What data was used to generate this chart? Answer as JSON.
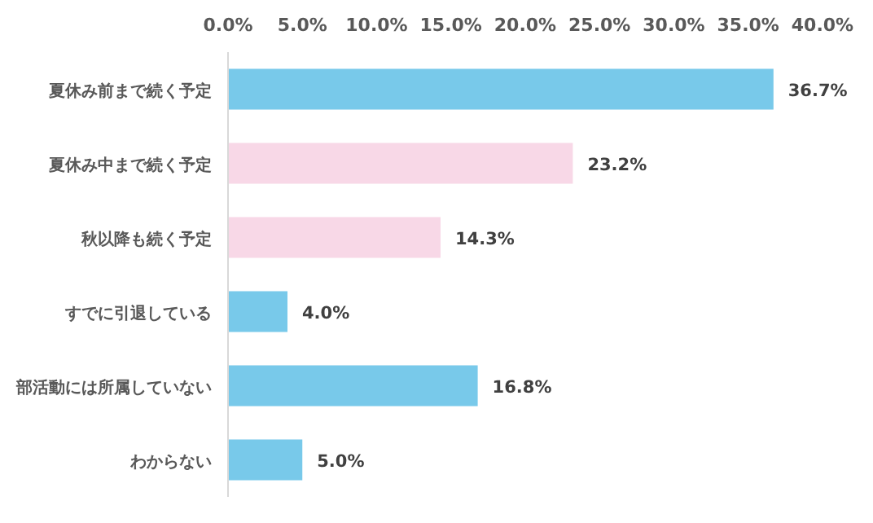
{
  "chart_data": {
    "type": "bar",
    "orientation": "horizontal",
    "categories": [
      "夏休み前まで続く予定",
      "夏休み中まで続く予定",
      "秋以降も続く予定",
      "すでに引退している",
      "部活動には所属していない",
      "わからない"
    ],
    "values": [
      36.7,
      23.2,
      14.3,
      4.0,
      16.8,
      5.0
    ],
    "colors": [
      "#78c9ea",
      "#f8d8e7",
      "#f8d8e7",
      "#78c9ea",
      "#78c9ea",
      "#78c9ea"
    ],
    "value_labels": [
      "36.7%",
      "23.2%",
      "14.3%",
      "4.0%",
      "16.8%",
      "5.0%"
    ],
    "xlim": [
      0,
      40
    ],
    "xticks": [
      {
        "value": 0,
        "label": "0.0%"
      },
      {
        "value": 5,
        "label": "5.0%"
      },
      {
        "value": 10,
        "label": "10.0%"
      },
      {
        "value": 15,
        "label": "15.0%"
      },
      {
        "value": 20,
        "label": "20.0%"
      },
      {
        "value": 25,
        "label": "25.0%"
      },
      {
        "value": 30,
        "label": "30.0%"
      },
      {
        "value": 35,
        "label": "35.0%"
      },
      {
        "value": 40,
        "label": "40.0%"
      }
    ],
    "grid": false
  }
}
